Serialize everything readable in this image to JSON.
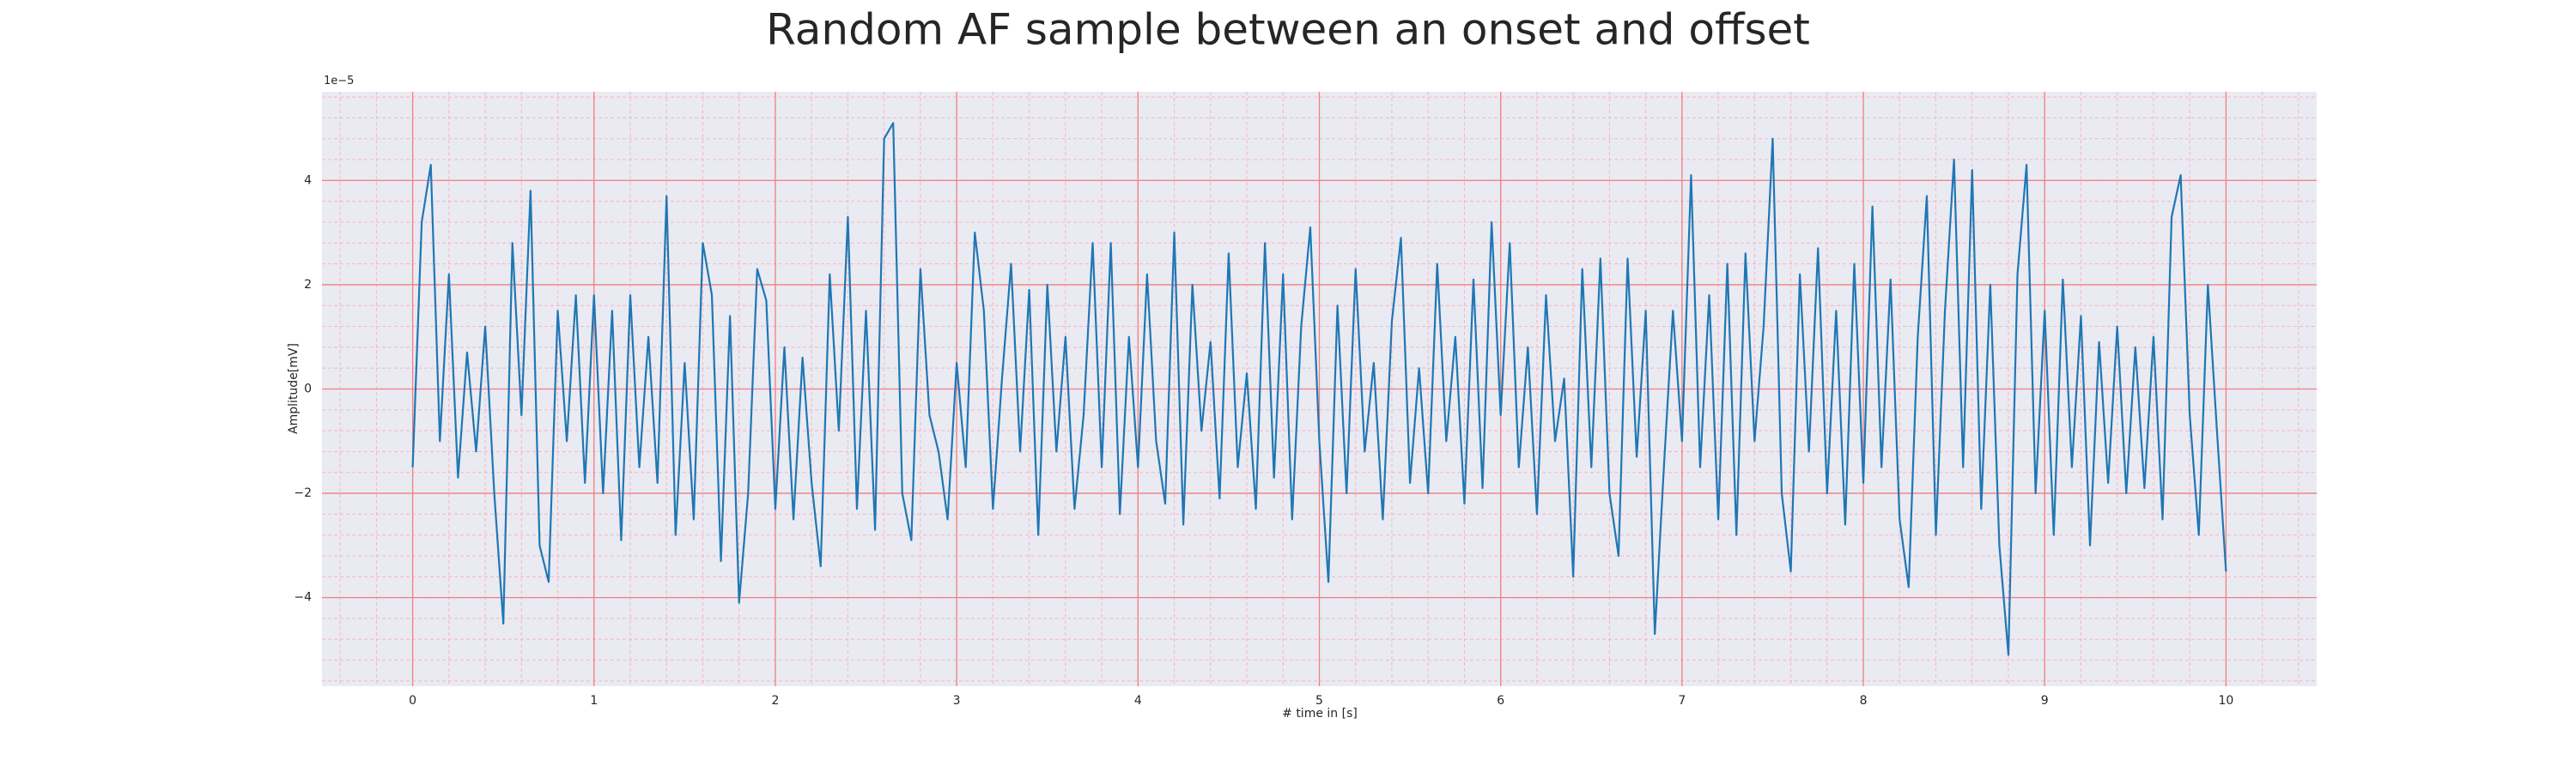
{
  "chart_data": {
    "type": "line",
    "title": "Random AF sample between an onset and offset",
    "xlabel": "# time in [s]",
    "ylabel": "Amplitude[mV]",
    "y_offset_label": "1e−5",
    "xlim": [
      -0.5,
      10.5
    ],
    "ylim": [
      -5.7,
      5.7
    ],
    "xticks": [
      0,
      1,
      2,
      3,
      4,
      5,
      6,
      7,
      8,
      9,
      10
    ],
    "yticks": [
      {
        "value": -4,
        "label": "−4"
      },
      {
        "value": -2,
        "label": "−2"
      },
      0,
      2,
      4
    ],
    "grid": true,
    "grid_color": "#f08080",
    "minor_grid": {
      "x_divisions": 5,
      "y_divisions": 5,
      "color": "#f4b6c2"
    },
    "background": "#eaeaf2",
    "x": [
      0,
      0.05,
      0.1,
      0.15,
      0.2,
      0.25,
      0.3,
      0.35,
      0.4,
      0.45,
      0.5,
      0.55,
      0.6,
      0.65,
      0.7,
      0.75,
      0.8,
      0.85,
      0.9,
      0.95,
      1,
      1.05,
      1.1,
      1.15,
      1.2,
      1.25,
      1.3,
      1.35,
      1.4,
      1.45,
      1.5,
      1.55,
      1.6,
      1.65,
      1.7,
      1.75,
      1.8,
      1.85,
      1.9,
      1.95,
      2,
      2.05,
      2.1,
      2.15,
      2.2,
      2.25,
      2.3,
      2.35,
      2.4,
      2.45,
      2.5,
      2.55,
      2.6,
      2.65,
      2.7,
      2.75,
      2.8,
      2.85,
      2.9,
      2.95,
      3,
      3.05,
      3.1,
      3.15,
      3.2,
      3.25,
      3.3,
      3.35,
      3.4,
      3.45,
      3.5,
      3.55,
      3.6,
      3.65,
      3.7,
      3.75,
      3.8,
      3.85,
      3.9,
      3.95,
      4,
      4.05,
      4.1,
      4.15,
      4.2,
      4.25,
      4.3,
      4.35,
      4.4,
      4.45,
      4.5,
      4.55,
      4.6,
      4.65,
      4.7,
      4.75,
      4.8,
      4.85,
      4.9,
      4.95,
      5,
      5.05,
      5.1,
      5.15,
      5.2,
      5.25,
      5.3,
      5.35,
      5.4,
      5.45,
      5.5,
      5.55,
      5.6,
      5.65,
      5.7,
      5.75,
      5.8,
      5.85,
      5.9,
      5.95,
      6,
      6.05,
      6.1,
      6.15,
      6.2,
      6.25,
      6.3,
      6.35,
      6.4,
      6.45,
      6.5,
      6.55,
      6.6,
      6.65,
      6.7,
      6.75,
      6.8,
      6.85,
      6.9,
      6.95,
      7,
      7.05,
      7.1,
      7.15,
      7.2,
      7.25,
      7.3,
      7.35,
      7.4,
      7.45,
      7.5,
      7.55,
      7.6,
      7.65,
      7.7,
      7.75,
      7.8,
      7.85,
      7.9,
      7.95,
      8,
      8.05,
      8.1,
      8.15,
      8.2,
      8.25,
      8.3,
      8.35,
      8.4,
      8.45,
      8.5,
      8.55,
      8.6,
      8.65,
      8.7,
      8.75,
      8.8,
      8.85,
      8.9,
      8.95,
      9,
      9.05,
      9.1,
      9.15,
      9.2,
      9.25,
      9.3,
      9.35,
      9.4,
      9.45,
      9.5,
      9.55,
      9.6,
      9.65,
      9.7,
      9.75,
      9.8,
      9.85,
      9.9,
      9.95,
      10
    ],
    "series": [
      {
        "color": "#1f77b4",
        "values": [
          -1.5,
          3.2,
          4.3,
          -1.0,
          2.2,
          -1.7,
          0.7,
          -1.2,
          1.2,
          -2.0,
          -4.5,
          2.8,
          -0.5,
          3.8,
          -3.0,
          -3.7,
          1.5,
          -1.0,
          1.8,
          -1.8,
          1.8,
          -2.0,
          1.5,
          -2.9,
          1.8,
          -1.5,
          1.0,
          -1.8,
          3.7,
          -2.8,
          0.5,
          -2.5,
          2.8,
          1.8,
          -3.3,
          1.4,
          -4.1,
          -2.0,
          2.3,
          1.7,
          -2.3,
          0.8,
          -2.5,
          0.6,
          -1.8,
          -3.4,
          2.2,
          -0.8,
          3.3,
          -2.3,
          1.5,
          -2.7,
          4.8,
          5.1,
          -2.0,
          -2.9,
          2.3,
          -0.5,
          -1.2,
          -2.5,
          0.5,
          -1.5,
          3.0,
          1.5,
          -2.3,
          0.2,
          2.4,
          -1.2,
          1.9,
          -2.8,
          2.0,
          -1.2,
          1.0,
          -2.3,
          -0.5,
          2.8,
          -1.5,
          2.8,
          -2.4,
          1.0,
          -1.5,
          2.2,
          -1.0,
          -2.2,
          3.0,
          -2.6,
          2.0,
          -0.8,
          0.9,
          -2.1,
          2.6,
          -1.5,
          0.3,
          -2.3,
          2.8,
          -1.7,
          2.2,
          -2.5,
          1.2,
          3.1,
          -1.0,
          -3.7,
          1.6,
          -2.0,
          2.3,
          -1.2,
          0.5,
          -2.5,
          1.3,
          2.9,
          -1.8,
          0.4,
          -2.0,
          2.4,
          -1.0,
          1.0,
          -2.2,
          2.1,
          -1.9,
          3.2,
          -0.5,
          2.8,
          -1.5,
          0.8,
          -2.4,
          1.8,
          -1.0,
          0.2,
          -3.6,
          2.3,
          -1.5,
          2.5,
          -2.0,
          -3.2,
          2.5,
          -1.3,
          1.5,
          -4.7,
          -1.5,
          1.5,
          -1.0,
          4.1,
          -1.5,
          1.8,
          -2.5,
          2.4,
          -2.8,
          2.6,
          -1.0,
          1.2,
          4.8,
          -2.0,
          -3.5,
          2.2,
          -1.2,
          2.7,
          -2.0,
          1.5,
          -2.6,
          2.4,
          -1.8,
          3.5,
          -1.5,
          2.1,
          -2.5,
          -3.8,
          1.0,
          3.7,
          -2.8,
          1.5,
          4.4,
          -1.5,
          4.2,
          -2.3,
          2.0,
          -3.0,
          -5.1,
          2.2,
          4.3,
          -2.0,
          1.5,
          -2.8,
          2.1,
          -1.5,
          1.4,
          -3.0,
          0.9,
          -1.8,
          1.2,
          -2.0,
          0.8,
          -1.9,
          1.0,
          -2.5,
          3.3,
          4.1,
          -0.5,
          -2.8,
          2.0,
          -0.8,
          -3.5
        ]
      }
    ]
  }
}
